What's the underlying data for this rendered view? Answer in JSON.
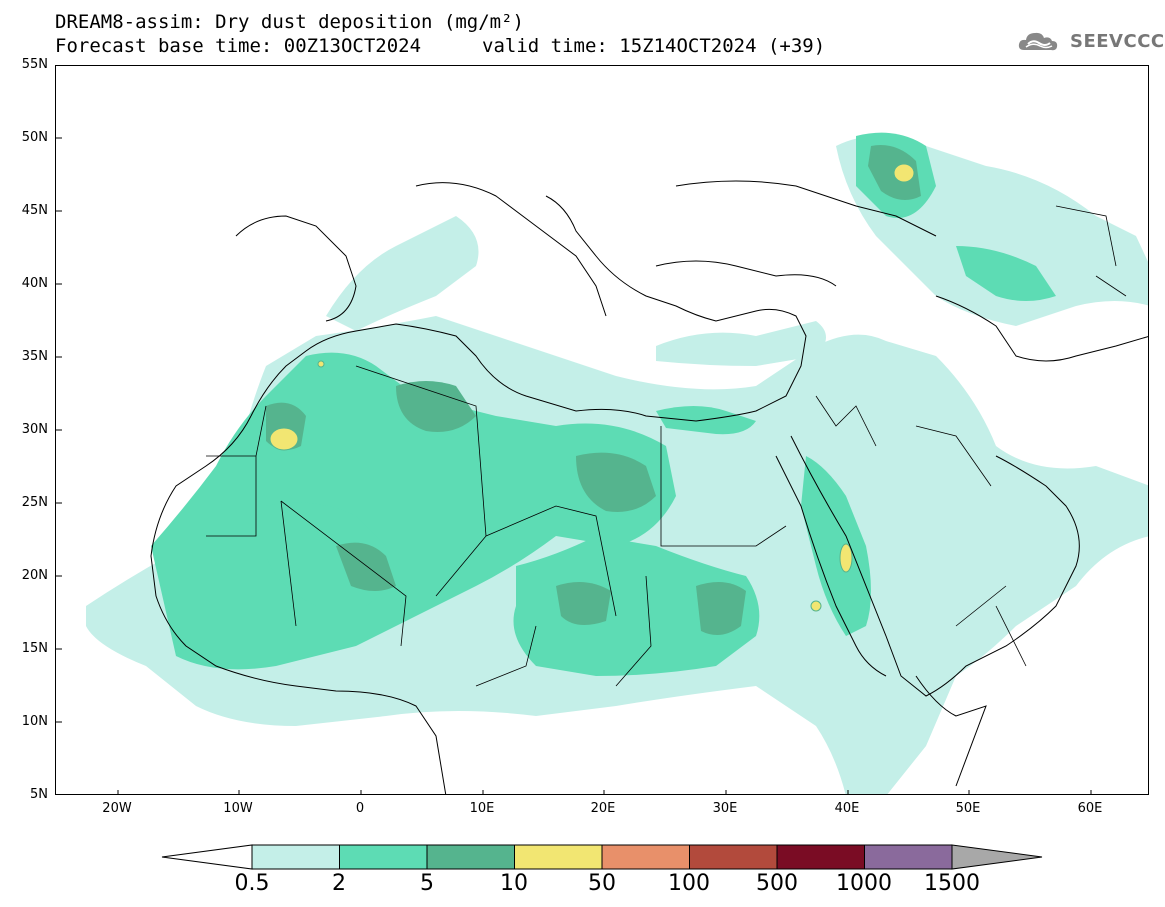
{
  "header": {
    "title_line1": "DREAM8-assim: Dry dust deposition (mg/m²)",
    "title_line2_left": "Forecast base time: 00Z13OCT2024",
    "title_line2_right": "valid time: 15Z14OCT2024 (+39)",
    "logo_text": "SEEVCCC"
  },
  "map": {
    "lat_labels": [
      "55N",
      "50N",
      "45N",
      "40N",
      "35N",
      "30N",
      "25N",
      "20N",
      "15N",
      "10N",
      "5N"
    ],
    "lon_labels": [
      "20W",
      "10W",
      "0",
      "10E",
      "20E",
      "30E",
      "40E",
      "50E",
      "60E"
    ]
  },
  "legend": {
    "levels": [
      "0.5",
      "2",
      "5",
      "10",
      "50",
      "100",
      "500",
      "1000",
      "1500"
    ],
    "colors": [
      "#c4efe8",
      "#5ddcb4",
      "#55b48e",
      "#f2e672",
      "#e8906a",
      "#b24a3c",
      "#7a0c24",
      "#8a6a9c",
      "#a8a8a8"
    ]
  }
}
